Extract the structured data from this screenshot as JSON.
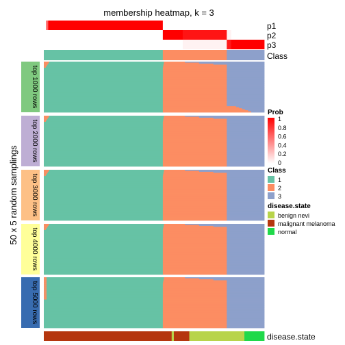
{
  "chart_data": {
    "type": "heatmap",
    "title": "membership heatmap, k = 3",
    "ylabel": "50 x 5 random samplings",
    "top_rows": [
      {
        "label": "p1",
        "kind": "prob",
        "segments": [
          [
            0.0,
            0.0
          ],
          [
            0.01,
            0.6
          ],
          [
            0.02,
            1.0
          ],
          [
            0.54,
            0.0
          ],
          [
            1.0,
            0.0
          ]
        ]
      },
      {
        "label": "p2",
        "kind": "prob",
        "segments": [
          [
            0.0,
            0.0
          ],
          [
            0.54,
            1.0
          ],
          [
            0.63,
            0.92
          ],
          [
            0.83,
            0.05
          ],
          [
            0.85,
            0.0
          ],
          [
            1.0,
            0.0
          ]
        ]
      },
      {
        "label": "p3",
        "kind": "prob",
        "segments": [
          [
            0.0,
            0.0
          ],
          [
            0.54,
            0.0
          ],
          [
            0.63,
            0.05
          ],
          [
            0.83,
            0.9
          ],
          [
            0.85,
            1.0
          ],
          [
            1.0,
            1.0
          ]
        ]
      },
      {
        "label": "Class",
        "kind": "class",
        "segments": [
          [
            0.0,
            "1"
          ],
          [
            0.54,
            "2"
          ],
          [
            0.83,
            "3"
          ],
          [
            1.0,
            "3"
          ]
        ]
      }
    ],
    "groups": [
      {
        "label": "top 1000 rows",
        "color": "#7fc97f"
      },
      {
        "label": "top 2000 rows",
        "color": "#beaed4"
      },
      {
        "label": "top 3000 rows",
        "color": "#fdc086"
      },
      {
        "label": "top 4000 rows",
        "color": "#ffff99"
      },
      {
        "label": "top 5000 rows",
        "color": "#386cb0"
      }
    ],
    "bottom_row": {
      "label": "disease.state",
      "segments": [
        [
          0.0,
          "malignant melanoma"
        ],
        [
          0.58,
          "benign nevi"
        ],
        [
          0.59,
          "malignant melanoma"
        ],
        [
          0.66,
          "benign nevi"
        ],
        [
          0.91,
          "normal"
        ],
        [
          1.0,
          "normal"
        ]
      ]
    },
    "legends": {
      "prob": {
        "title": "Prob",
        "ticks": [
          "1",
          "0.8",
          "0.6",
          "0.4",
          "0.2",
          "0"
        ]
      },
      "class": {
        "title": "Class",
        "items": [
          {
            "label": "1",
            "color": "#66c2a5"
          },
          {
            "label": "2",
            "color": "#fc8d62"
          },
          {
            "label": "3",
            "color": "#8da0cb"
          }
        ]
      },
      "disease": {
        "title": "disease.state",
        "items": [
          {
            "label": "benign nevi",
            "color": "#b8d44b"
          },
          {
            "label": "malignant melanoma",
            "color": "#b5360e"
          },
          {
            "label": "normal",
            "color": "#1fd94a"
          }
        ]
      }
    },
    "colors": {
      "prob_high": "#ff0000",
      "prob_low": "#ffffff"
    }
  }
}
